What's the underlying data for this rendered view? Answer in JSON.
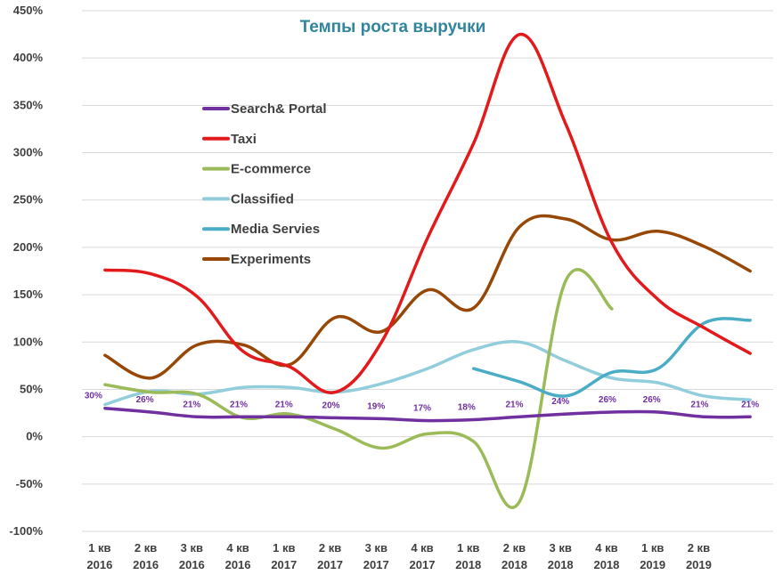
{
  "chart_data": {
    "type": "line",
    "title": "Темпы роста выручки",
    "title_color": "#31859c",
    "categories": [
      [
        "1 кв",
        "2016"
      ],
      [
        "2 кв",
        "2016"
      ],
      [
        "3 кв",
        "2016"
      ],
      [
        "4 кв",
        "2016"
      ],
      [
        "1 кв",
        "2017"
      ],
      [
        "2 кв",
        "2017"
      ],
      [
        "3 кв",
        "2017"
      ],
      [
        "4 кв",
        "2017"
      ],
      [
        "1 кв",
        "2018"
      ],
      [
        "2 кв",
        "2018"
      ],
      [
        "3 кв",
        "2018"
      ],
      [
        "4 кв",
        "2018"
      ],
      [
        "1 кв",
        "2019"
      ],
      [
        "2 кв",
        "2019"
      ],
      [
        "",
        ""
      ]
    ],
    "y_ticks": [
      "-100%",
      "-50%",
      "0%",
      "50%",
      "100%",
      "150%",
      "200%",
      "250%",
      "300%",
      "350%",
      "400%",
      "450%"
    ],
    "ylim": [
      -100,
      450
    ],
    "y_step": 50,
    "grid": true,
    "legend_placement": "upper-left-inside",
    "series": [
      {
        "name": "Search& Portal",
        "color": "#7030a0",
        "values": [
          30,
          26,
          21,
          21,
          21,
          20,
          19,
          17,
          18,
          21,
          24,
          26,
          26,
          21,
          21
        ],
        "data_labels": [
          "30%",
          "26%",
          "21%",
          "21%",
          "21%",
          "20%",
          "19%",
          "17%",
          "18%",
          "21%",
          "24%",
          "26%",
          "26%",
          "21%",
          "21%"
        ]
      },
      {
        "name": "Taxi",
        "color": "#e31a1c",
        "values": [
          176,
          172,
          148,
          90,
          74,
          47,
          100,
          210,
          310,
          425,
          330,
          205,
          145,
          115,
          88
        ]
      },
      {
        "name": "E-commerce",
        "color": "#9bbb59",
        "values": [
          55,
          47,
          45,
          20,
          24,
          8,
          -12,
          3,
          -5,
          -68,
          165,
          135,
          null,
          null,
          null
        ]
      },
      {
        "name": "Classified",
        "color": "#92cddc",
        "values": [
          34,
          48,
          45,
          52,
          52,
          47,
          56,
          72,
          92,
          100,
          80,
          62,
          57,
          43,
          39
        ]
      },
      {
        "name": "Media Servies",
        "color": "#4bacc6",
        "values": [
          null,
          null,
          null,
          null,
          null,
          null,
          null,
          null,
          72,
          58,
          43,
          68,
          72,
          120,
          123
        ]
      },
      {
        "name": "Experiments",
        "color": "#974706",
        "values": [
          86,
          62,
          97,
          97,
          76,
          126,
          111,
          155,
          136,
          222,
          230,
          208,
          217,
          201,
          175
        ]
      }
    ]
  }
}
